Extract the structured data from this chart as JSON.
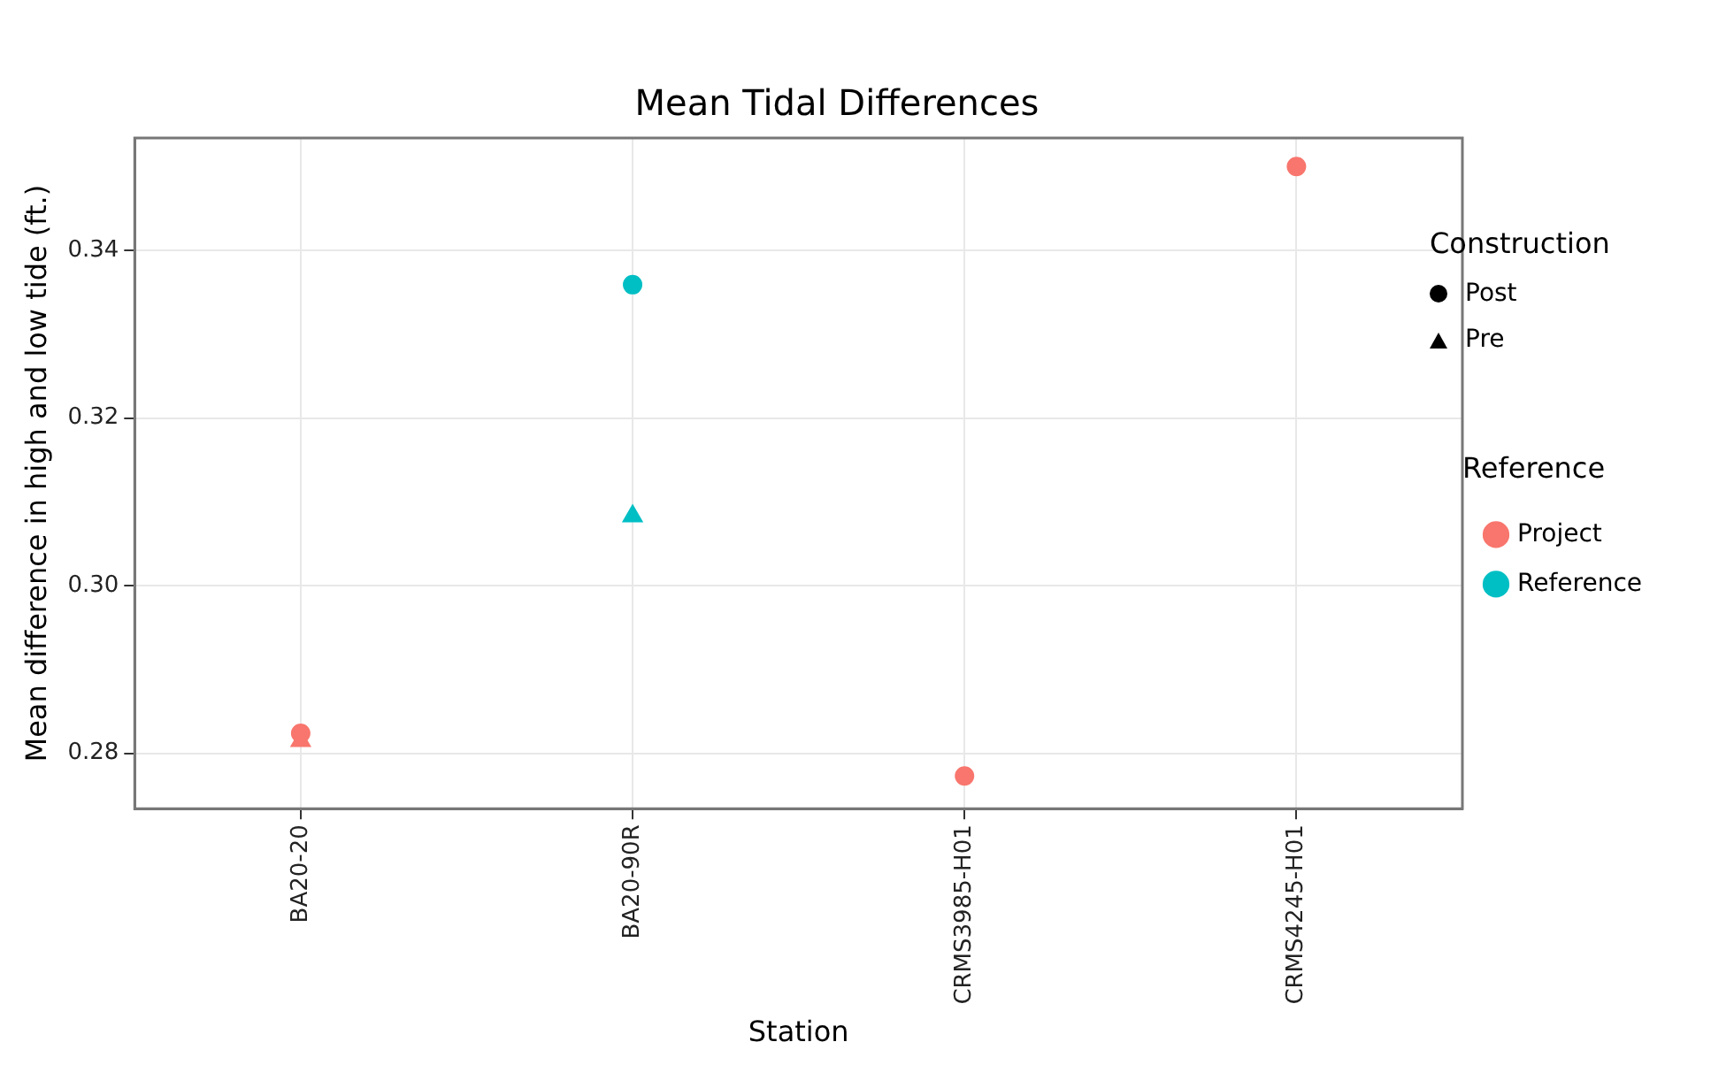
{
  "chart_data": {
    "type": "scatter",
    "title": "Mean Tidal Differences",
    "xlabel": "Station",
    "ylabel": "Mean difference in high and low tide (ft.)",
    "categories": [
      "BA20-20",
      "BA20-90R",
      "CRMS3985-H01",
      "CRMS4245-H01"
    ],
    "ylim": [
      0.2734,
      0.3534
    ],
    "yticks": [
      {
        "value": 0.28,
        "label": "0.28"
      },
      {
        "value": 0.3,
        "label": "0.30"
      },
      {
        "value": 0.32,
        "label": "0.32"
      },
      {
        "value": 0.34,
        "label": "0.34"
      }
    ],
    "grid": true,
    "legend": "right",
    "legend_title": "Reference",
    "annotations": [
      "Construction",
      "Post",
      "Pre"
    ],
    "series": [
      {
        "name": "Project",
        "x": [
          "BA20-20",
          "CRMS3985-H01",
          "CRMS4245-H01"
        ],
        "values": [
          0.2824,
          0.2773,
          0.35
        ],
        "color": "#f8766d",
        "marker": "circle"
      },
      {
        "name": "Reference",
        "x": [
          "BA20-90R"
        ],
        "values": [
          0.3359
        ],
        "color": "#00bfc4",
        "marker": "circle"
      },
      {
        "x": [
          "BA20-20"
        ],
        "values": [
          0.2815
        ],
        "color": "#f8766d",
        "marker": "triangle"
      },
      {
        "x": [
          "BA20-90R"
        ],
        "values": [
          0.3083
        ],
        "color": "#00bfc4",
        "marker": "triangle"
      }
    ]
  }
}
